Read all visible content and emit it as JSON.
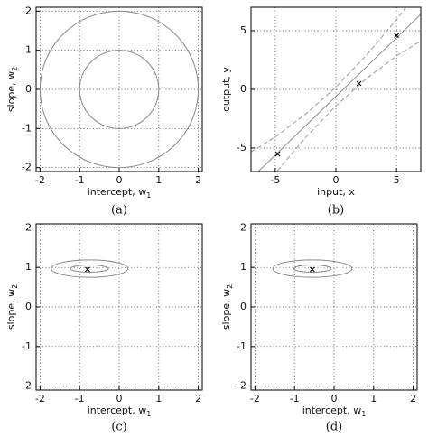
{
  "chart_data": [
    {
      "type": "ellipses",
      "caption": "(a)",
      "xlabel": "intercept, w",
      "xlabel_subscript": "1",
      "ylabel": "slope, w",
      "ylabel_subscript": "2",
      "xlim": [
        -2.1,
        2.1
      ],
      "ylim": [
        -2.1,
        2.1
      ],
      "xticks": [
        -2,
        -1,
        0,
        1,
        2
      ],
      "yticks": [
        -2,
        -1,
        0,
        1,
        2
      ],
      "grid": true,
      "color": "#888888",
      "ellipses": [
        {
          "cx": 0,
          "cy": 0,
          "rx": 1,
          "ry": 1
        },
        {
          "cx": 0,
          "cy": 0,
          "rx": 2,
          "ry": 2
        }
      ]
    },
    {
      "type": "regression",
      "caption": "(b)",
      "xlabel": "input, x",
      "ylabel": "output, y",
      "xlim": [
        -7,
        7
      ],
      "ylim": [
        -7,
        7
      ],
      "xticks": [
        -5,
        0,
        5
      ],
      "yticks": [
        -5,
        0,
        5
      ],
      "grid": true,
      "series": [
        {
          "style": "solid",
          "color": "#888888",
          "x": [
            -7,
            -5,
            -2.5,
            0,
            2.5,
            5,
            7
          ],
          "values": [
            -7.6,
            -5.6,
            -3.1,
            -0.6,
            1.9,
            4.4,
            6.4
          ]
        },
        {
          "style": "dashed",
          "color": "#999999",
          "x": [
            -7,
            -5,
            -2.5,
            0,
            2.5,
            5,
            7
          ],
          "values": [
            -5.33,
            -4.05,
            -2.11,
            0.2,
            2.89,
            5.95,
            8.67
          ]
        },
        {
          "style": "dashed",
          "color": "#999999",
          "x": [
            -7,
            -5,
            -2.5,
            0,
            2.5,
            5,
            7
          ],
          "values": [
            -9.87,
            -7.15,
            -4.09,
            -1.4,
            0.91,
            2.85,
            4.13
          ]
        }
      ],
      "points": {
        "x": [
          -4.8,
          1.9,
          5.0
        ],
        "y": [
          -5.5,
          0.5,
          4.6
        ]
      }
    },
    {
      "type": "ellipses",
      "caption": "(c)",
      "xlabel": "intercept, w",
      "xlabel_subscript": "1",
      "ylabel": "slope, w",
      "ylabel_subscript": "2",
      "xlim": [
        -2.1,
        2.1
      ],
      "ylim": [
        -2.1,
        2.1
      ],
      "xticks": [
        -2,
        -1,
        0,
        1,
        2
      ],
      "yticks": [
        -2,
        -1,
        0,
        1,
        2
      ],
      "grid": true,
      "color": "#888888",
      "ellipses": [
        {
          "cx": -0.75,
          "cy": 0.97,
          "rx": 0.48,
          "ry": 0.09
        },
        {
          "cx": -0.75,
          "cy": 0.97,
          "rx": 0.97,
          "ry": 0.22
        }
      ],
      "points": {
        "x": [
          -0.8
        ],
        "y": [
          0.95
        ]
      }
    },
    {
      "type": "ellipses",
      "caption": "(d)",
      "xlabel": "intercept, w",
      "xlabel_subscript": "1",
      "ylabel": "slope, w",
      "ylabel_subscript": "2",
      "xlim": [
        -2.1,
        2.1
      ],
      "ylim": [
        -2.1,
        2.1
      ],
      "xticks": [
        -2,
        -1,
        0,
        1,
        2
      ],
      "yticks": [
        -2,
        -1,
        0,
        1,
        2
      ],
      "grid": true,
      "color": "#888888",
      "ellipses": [
        {
          "cx": -0.55,
          "cy": 0.97,
          "rx": 0.48,
          "ry": 0.09
        },
        {
          "cx": -0.55,
          "cy": 0.97,
          "rx": 1.0,
          "ry": 0.22
        }
      ],
      "points": {
        "x": [
          -0.55
        ],
        "y": [
          0.95
        ]
      }
    }
  ]
}
